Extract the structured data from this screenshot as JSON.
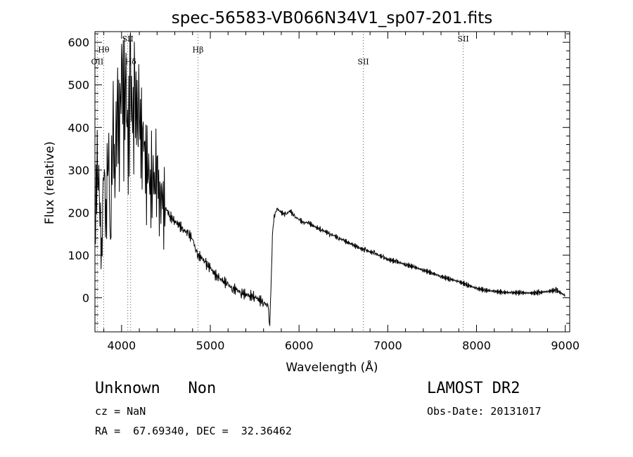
{
  "chart_data": {
    "type": "line",
    "title": "spec-56583-VB066N34V1_sp07-201.fits",
    "xlabel": "Wavelength (Å)",
    "ylabel": "Flux (relative)",
    "xlim": [
      3700,
      9050
    ],
    "ylim": [
      -80,
      625
    ],
    "xticks": [
      4000,
      5000,
      6000,
      7000,
      8000,
      9000
    ],
    "yticks": [
      0,
      100,
      200,
      300,
      400,
      500,
      600
    ],
    "grid": false,
    "line_color": "#000000",
    "lines": [
      {
        "label": "OII",
        "wavelength": 3727,
        "label_y": 548
      },
      {
        "label": "Hθ",
        "wavelength": 3798,
        "label_y": 576
      },
      {
        "label": "SII",
        "wavelength": 4070,
        "label_y": 602
      },
      {
        "label": "Hδ",
        "wavelength": 4102,
        "label_y": 548
      },
      {
        "label": "Hβ",
        "wavelength": 4861,
        "label_y": 576
      },
      {
        "label": "SII",
        "wavelength": 6724,
        "label_y": 548
      },
      {
        "label": "SII",
        "wavelength": 7850,
        "label_y": 602
      }
    ],
    "series": [
      {
        "x": [
          3700,
          3725,
          3750,
          3775,
          3800,
          3825,
          3850,
          3875,
          3900,
          3925,
          3950,
          3975,
          4000,
          4025,
          4050,
          4075,
          4100,
          4125,
          4150,
          4175,
          4200,
          4225,
          4250,
          4275,
          4300,
          4325,
          4350,
          4375,
          4400,
          4425,
          4450,
          4475,
          4500,
          4550,
          4600,
          4650,
          4700,
          4750,
          4800,
          4850,
          4900,
          4950,
          5000,
          5050,
          5100,
          5150,
          5200,
          5250,
          5300,
          5350,
          5400,
          5450,
          5500,
          5550,
          5600,
          5650,
          5670,
          5690,
          5700,
          5720,
          5750,
          5800,
          5850,
          5900,
          5950,
          6000,
          6050,
          6100,
          6150,
          6200,
          6250,
          6300,
          6350,
          6400,
          6450,
          6500,
          6550,
          6600,
          6650,
          6700,
          6750,
          6800,
          6850,
          6900,
          6950,
          7000,
          7100,
          7200,
          7300,
          7400,
          7500,
          7600,
          7700,
          7800,
          7900,
          8000,
          8100,
          8200,
          8300,
          8400,
          8500,
          8600,
          8700,
          8800,
          8900,
          9000
        ],
        "y": [
          150,
          310,
          240,
          90,
          330,
          170,
          390,
          120,
          450,
          280,
          480,
          380,
          560,
          440,
          500,
          330,
          540,
          390,
          470,
          410,
          430,
          350,
          380,
          290,
          320,
          250,
          300,
          270,
          330,
          230,
          250,
          220,
          210,
          190,
          180,
          170,
          160,
          150,
          140,
          100,
          95,
          80,
          70,
          55,
          45,
          40,
          30,
          22,
          18,
          12,
          8,
          5,
          3,
          -5,
          -10,
          -20,
          -60,
          60,
          150,
          190,
          210,
          200,
          195,
          205,
          190,
          185,
          175,
          178,
          170,
          165,
          160,
          155,
          150,
          145,
          140,
          135,
          130,
          125,
          120,
          115,
          112,
          108,
          105,
          100,
          95,
          90,
          85,
          78,
          72,
          65,
          58,
          50,
          44,
          38,
          30,
          22,
          18,
          15,
          13,
          12,
          12,
          11,
          12,
          15,
          18,
          5
        ]
      }
    ]
  },
  "object": {
    "class": "Unknown",
    "subclass": "Non",
    "survey": "LAMOST DR2"
  },
  "meta": {
    "cz": "cz = NaN",
    "obs_date": "Obs-Date: 20131017",
    "radec": "RA =  67.69340, DEC =  32.36462"
  }
}
